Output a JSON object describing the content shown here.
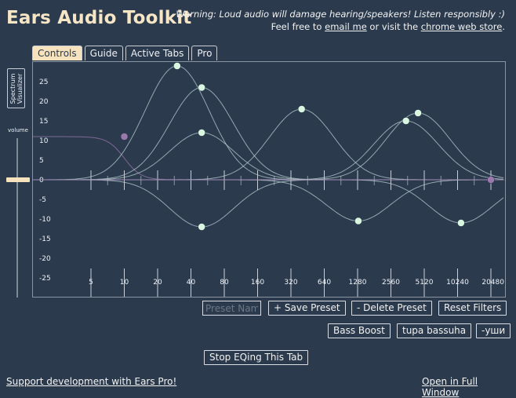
{
  "header": {
    "title": "Ears Audio Toolkit",
    "warning": "Warning: Loud audio will damage hearing/speakers! Listen responsibly :)",
    "feel_pre": "Feel free to ",
    "email_link": "email me",
    "feel_mid": " or visit the ",
    "store_link": "chrome web store",
    "feel_post": "."
  },
  "tabs": [
    {
      "label": "Controls",
      "active": true
    },
    {
      "label": "Guide",
      "active": false
    },
    {
      "label": "Active Tabs",
      "active": false
    },
    {
      "label": "Pro",
      "active": false
    }
  ],
  "sidebar": {
    "spectrum_label": "Spectrum Visualizer",
    "volume_label": "volume"
  },
  "eq_graph": {
    "y_ticks": [
      "25",
      "20",
      "15",
      "10",
      "5",
      "0",
      "-5",
      "-10",
      "-15",
      "-20",
      "-25"
    ],
    "x_ticks": [
      "5",
      "10",
      "20",
      "40",
      "80",
      "160",
      "320",
      "640",
      "1280",
      "2560",
      "5120",
      "10240",
      "20480"
    ],
    "filters": [
      {
        "freq": 10,
        "gain": 11,
        "type": "lowshelf",
        "color": "#9b79ad"
      },
      {
        "freq": 30,
        "gain": 29,
        "type": "peak",
        "color": "#d9f7e0"
      },
      {
        "freq": 50,
        "gain": 23.5,
        "type": "peak",
        "color": "#d9f7e0"
      },
      {
        "freq": 50,
        "gain": 12,
        "type": "peak",
        "color": "#d9f7e0"
      },
      {
        "freq": 50,
        "gain": -12,
        "type": "peak",
        "color": "#d9f7e0"
      },
      {
        "freq": 400,
        "gain": 18,
        "type": "peak",
        "color": "#d9f7e0"
      },
      {
        "freq": 1300,
        "gain": -10.5,
        "type": "peak",
        "color": "#d9f7e0"
      },
      {
        "freq": 3500,
        "gain": 15,
        "type": "peak",
        "color": "#d9f7e0"
      },
      {
        "freq": 4500,
        "gain": 17,
        "type": "peak",
        "color": "#d9f7e0"
      },
      {
        "freq": 11000,
        "gain": -11,
        "type": "peak",
        "color": "#d9f7e0"
      },
      {
        "freq": 20480,
        "gain": 0,
        "type": "highshelf",
        "color": "#9b79ad"
      }
    ]
  },
  "controls": {
    "preset_placeholder": "Preset Name",
    "save_preset": "+ Save Preset",
    "delete_preset": "- Delete Preset",
    "reset_filters": "Reset Filters",
    "presets": [
      "Bass Boost",
      "tupa bassuha",
      "-уши"
    ],
    "stop_eq": "Stop EQing This Tab"
  },
  "footer": {
    "support_link": "Support development with Ears Pro!",
    "full_window_link": "Open in Full Window"
  }
}
